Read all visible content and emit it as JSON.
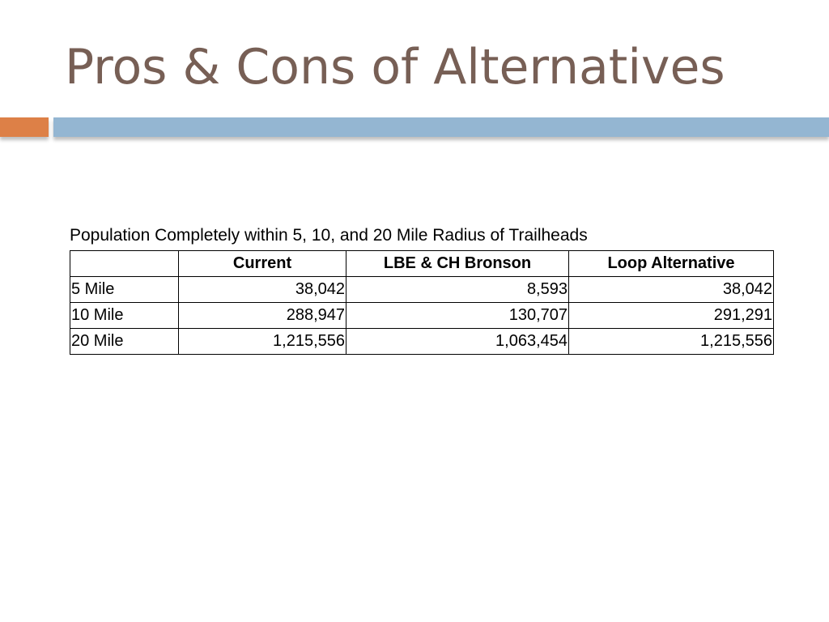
{
  "header": {
    "title": "Pros & Cons of Alternatives"
  },
  "table": {
    "caption": "Population Completely within 5, 10, and 20 Mile Radius of Trailheads",
    "columns": [
      "Current",
      "LBE & CH Bronson",
      "Loop Alternative"
    ],
    "rows": [
      [
        "5 Mile",
        "38,042",
        "8,593",
        "38,042"
      ],
      [
        "10 Mile",
        "288,947",
        "130,707",
        "291,291"
      ],
      [
        "20 Mile",
        "1,215,556",
        "1,063,454",
        "1,215,556"
      ]
    ]
  }
}
